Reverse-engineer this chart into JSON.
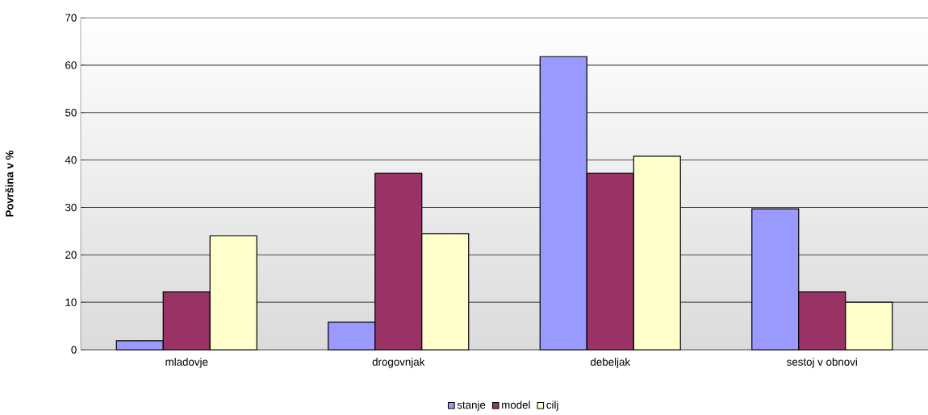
{
  "chart_data": {
    "type": "bar",
    "ylabel": "**Površina v %**",
    "categories": [
      "mladovje",
      "drogovnjak",
      "debeljak",
      "sestoj v obnovi"
    ],
    "series": [
      {
        "name": "stanje",
        "color": "#9999ff",
        "values": [
          1.9,
          5.8,
          61.8,
          29.7
        ]
      },
      {
        "name": "model",
        "color": "#993366",
        "values": [
          12.2,
          37.2,
          37.2,
          12.2
        ]
      },
      {
        "name": "cilj",
        "color": "#ffffcc",
        "values": [
          24.0,
          24.5,
          40.8,
          10.0
        ]
      }
    ],
    "ylim": [
      0,
      70
    ],
    "yticks": [
      0,
      10,
      20,
      30,
      40,
      50,
      60,
      70
    ],
    "grid": "y",
    "legend": "bottom"
  }
}
